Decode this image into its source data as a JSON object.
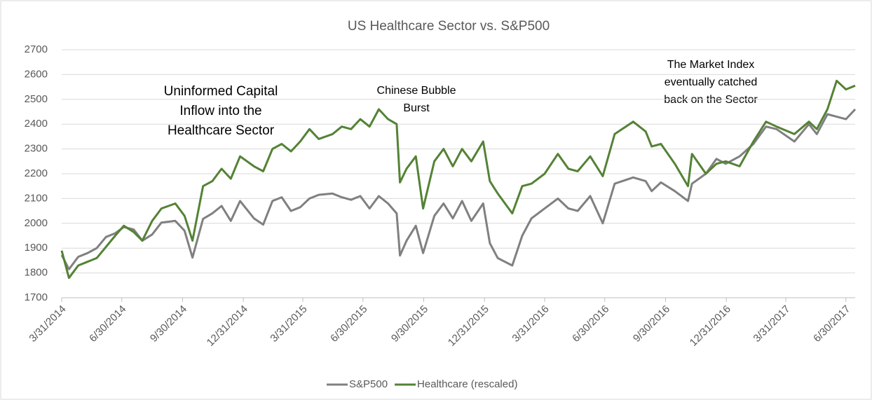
{
  "chart_data": {
    "type": "line",
    "title": "US Healthcare Sector vs. S&P500",
    "x": [
      "3/31/2014",
      "4/11/2014",
      "4/25/2014",
      "5/9/2014",
      "5/23/2014",
      "6/6/2014",
      "6/20/2014",
      "7/3/2014",
      "7/18/2014",
      "7/31/2014",
      "8/15/2014",
      "8/29/2014",
      "9/19/2014",
      "10/3/2014",
      "10/15/2014",
      "10/31/2014",
      "11/14/2014",
      "11/28/2014",
      "12/12/2014",
      "12/26/2014",
      "1/16/2015",
      "1/30/2015",
      "2/13/2015",
      "2/27/2015",
      "3/13/2015",
      "3/27/2015",
      "4/10/2015",
      "4/24/2015",
      "5/15/2015",
      "5/29/2015",
      "6/12/2015",
      "6/26/2015",
      "7/10/2015",
      "7/24/2015",
      "8/7/2015",
      "8/20/2015",
      "8/25/2015",
      "9/4/2015",
      "9/18/2015",
      "9/29/2015",
      "10/16/2015",
      "10/30/2015",
      "11/13/2015",
      "11/27/2015",
      "12/11/2015",
      "12/29/2015",
      "1/8/2016",
      "1/20/2016",
      "2/11/2016",
      "2/26/2016",
      "3/11/2016",
      "3/31/2016",
      "4/20/2016",
      "5/6/2016",
      "5/20/2016",
      "6/8/2016",
      "6/27/2016",
      "7/15/2016",
      "8/12/2016",
      "8/31/2016",
      "9/9/2016",
      "9/23/2016",
      "10/14/2016",
      "11/3/2016",
      "11/9/2016",
      "11/30/2016",
      "12/16/2016",
      "12/30/2016",
      "1/20/2017",
      "2/10/2017",
      "3/1/2017",
      "3/17/2017",
      "4/13/2017",
      "5/5/2017",
      "5/17/2017",
      "6/2/2017",
      "6/16/2017",
      "6/30/2017",
      "7/14/2017"
    ],
    "series": [
      {
        "name": "S&P500",
        "color": "#808080",
        "values": [
          1872,
          1815,
          1865,
          1880,
          1900,
          1945,
          1960,
          1985,
          1975,
          1930,
          1955,
          2003,
          2010,
          1970,
          1862,
          2018,
          2040,
          2070,
          2010,
          2090,
          2020,
          1995,
          2090,
          2105,
          2050,
          2065,
          2100,
          2115,
          2120,
          2105,
          2095,
          2110,
          2060,
          2110,
          2080,
          2040,
          1870,
          1930,
          1990,
          1880,
          2030,
          2080,
          2020,
          2090,
          2010,
          2080,
          1920,
          1860,
          1830,
          1950,
          2020,
          2060,
          2100,
          2060,
          2050,
          2110,
          2000,
          2160,
          2185,
          2170,
          2130,
          2165,
          2130,
          2090,
          2160,
          2200,
          2260,
          2240,
          2270,
          2320,
          2390,
          2380,
          2330,
          2400,
          2360,
          2440,
          2430,
          2420,
          2460
        ]
      },
      {
        "name": "Healthcare (rescaled)",
        "color": "#548235",
        "values": [
          1890,
          1780,
          1830,
          1845,
          1860,
          1905,
          1950,
          1990,
          1965,
          1930,
          2010,
          2060,
          2080,
          2030,
          1930,
          2150,
          2170,
          2220,
          2180,
          2270,
          2230,
          2210,
          2300,
          2320,
          2290,
          2330,
          2380,
          2340,
          2360,
          2390,
          2380,
          2420,
          2390,
          2460,
          2420,
          2400,
          2165,
          2220,
          2270,
          2060,
          2250,
          2300,
          2230,
          2300,
          2250,
          2330,
          2170,
          2120,
          2040,
          2150,
          2160,
          2200,
          2280,
          2220,
          2210,
          2270,
          2190,
          2360,
          2410,
          2370,
          2310,
          2320,
          2240,
          2150,
          2280,
          2200,
          2240,
          2250,
          2230,
          2330,
          2410,
          2390,
          2360,
          2410,
          2380,
          2460,
          2575,
          2540,
          2555
        ]
      }
    ],
    "xlim": [
      "3/31/2014",
      "7/14/2017"
    ],
    "xticks": [
      "3/31/2014",
      "6/30/2014",
      "9/30/2014",
      "12/31/2014",
      "3/31/2015",
      "6/30/2015",
      "9/30/2015",
      "12/31/2015",
      "3/31/2016",
      "6/30/2016",
      "9/30/2016",
      "12/31/2016",
      "3/31/2017",
      "6/30/2017"
    ],
    "ylim": [
      1700,
      2700
    ],
    "yticks": [
      1700,
      1800,
      1900,
      2000,
      2100,
      2200,
      2300,
      2400,
      2500,
      2600,
      2700
    ],
    "grid": true,
    "legend": "bottom",
    "annotations": [
      "Uninformed Capital",
      "Inflow into the",
      "Healthcare Sector",
      "Chinese Bubble",
      "Burst",
      "The Market Index",
      "eventually catched",
      "back on the Sector"
    ]
  }
}
